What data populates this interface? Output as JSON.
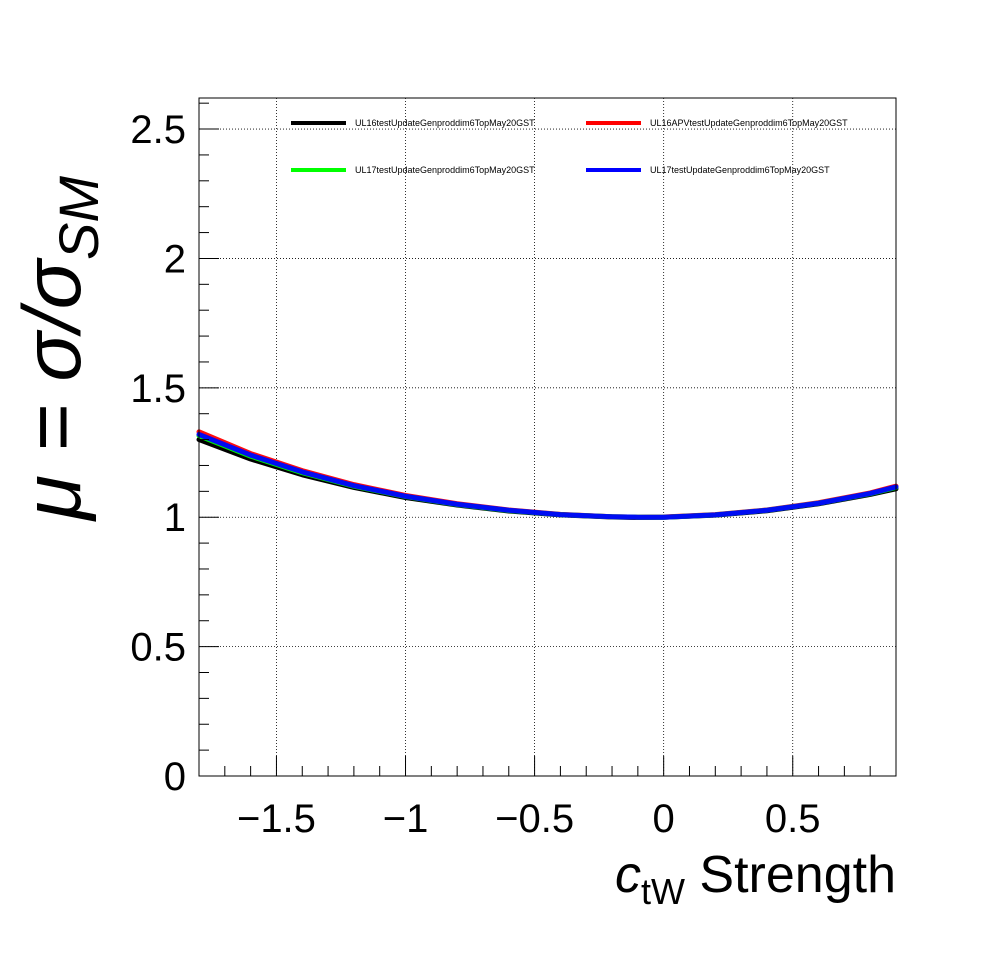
{
  "chart_data": {
    "type": "line",
    "title": "",
    "xlabel_main": "c",
    "xlabel_sub": "tW",
    "xlabel_rest": " Strength",
    "ylabel_text": "μ = σ/σ",
    "ylabel_sub": "SM",
    "xlim": [
      -1.8,
      0.9
    ],
    "ylim": [
      0,
      2.62
    ],
    "x_ticks": [
      -1.5,
      -1,
      -0.5,
      0,
      0.5
    ],
    "x_tick_labels": [
      "−1.5",
      "−1",
      "−0.5",
      "0",
      "0.5"
    ],
    "y_ticks": [
      0,
      0.5,
      1,
      1.5,
      2,
      2.5
    ],
    "y_tick_labels": [
      "0",
      "0.5",
      "1",
      "1.5",
      "2",
      "2.5"
    ],
    "grid": true,
    "legend_position": "top",
    "series": [
      {
        "name": "UL16testUpdateGenproddim6TopMay20GST",
        "color": "#000000",
        "x": [
          -1.8,
          -1.6,
          -1.4,
          -1.2,
          -1.0,
          -0.8,
          -0.6,
          -0.4,
          -0.2,
          -0.1,
          0.0,
          0.2,
          0.4,
          0.6,
          0.8,
          0.9
        ],
        "y": [
          1.3,
          1.225,
          1.164,
          1.115,
          1.076,
          1.047,
          1.024,
          1.009,
          1.001,
          0.999,
          1.0,
          1.008,
          1.025,
          1.052,
          1.088,
          1.11
        ]
      },
      {
        "name": "UL16APVtestUpdateGenproddim6TopMay20GST",
        "color": "#ff0000",
        "x": [
          -1.8,
          -1.6,
          -1.4,
          -1.2,
          -1.0,
          -0.8,
          -0.6,
          -0.4,
          -0.2,
          -0.1,
          0.0,
          0.2,
          0.4,
          0.6,
          0.8,
          0.9
        ],
        "y": [
          1.33,
          1.246,
          1.18,
          1.126,
          1.084,
          1.052,
          1.028,
          1.011,
          1.002,
          1.0,
          1.001,
          1.01,
          1.028,
          1.056,
          1.094,
          1.12
        ]
      },
      {
        "name": "UL17testUpdateGenproddim6TopMay20GST",
        "color": "#00ff00",
        "x": [
          -1.8,
          -1.6,
          -1.4,
          -1.2,
          -1.0,
          -0.8,
          -0.6,
          -0.4,
          -0.2,
          -0.1,
          0.0,
          0.2,
          0.4,
          0.6,
          0.8,
          0.9
        ],
        "y": [
          1.315,
          1.236,
          1.172,
          1.12,
          1.08,
          1.049,
          1.026,
          1.01,
          1.002,
          1.0,
          1.0,
          1.009,
          1.027,
          1.054,
          1.091,
          1.115
        ]
      },
      {
        "name": "UL17testUpdateGenproddim6TopMay20GST",
        "color": "#0000ff",
        "x": [
          -1.8,
          -1.6,
          -1.4,
          -1.2,
          -1.0,
          -0.8,
          -0.6,
          -0.4,
          -0.2,
          -0.1,
          0.0,
          0.2,
          0.4,
          0.6,
          0.8,
          0.9
        ],
        "y": [
          1.32,
          1.24,
          1.175,
          1.122,
          1.081,
          1.05,
          1.027,
          1.01,
          1.002,
          1.0,
          1.0,
          1.009,
          1.027,
          1.054,
          1.092,
          1.117
        ]
      }
    ]
  }
}
